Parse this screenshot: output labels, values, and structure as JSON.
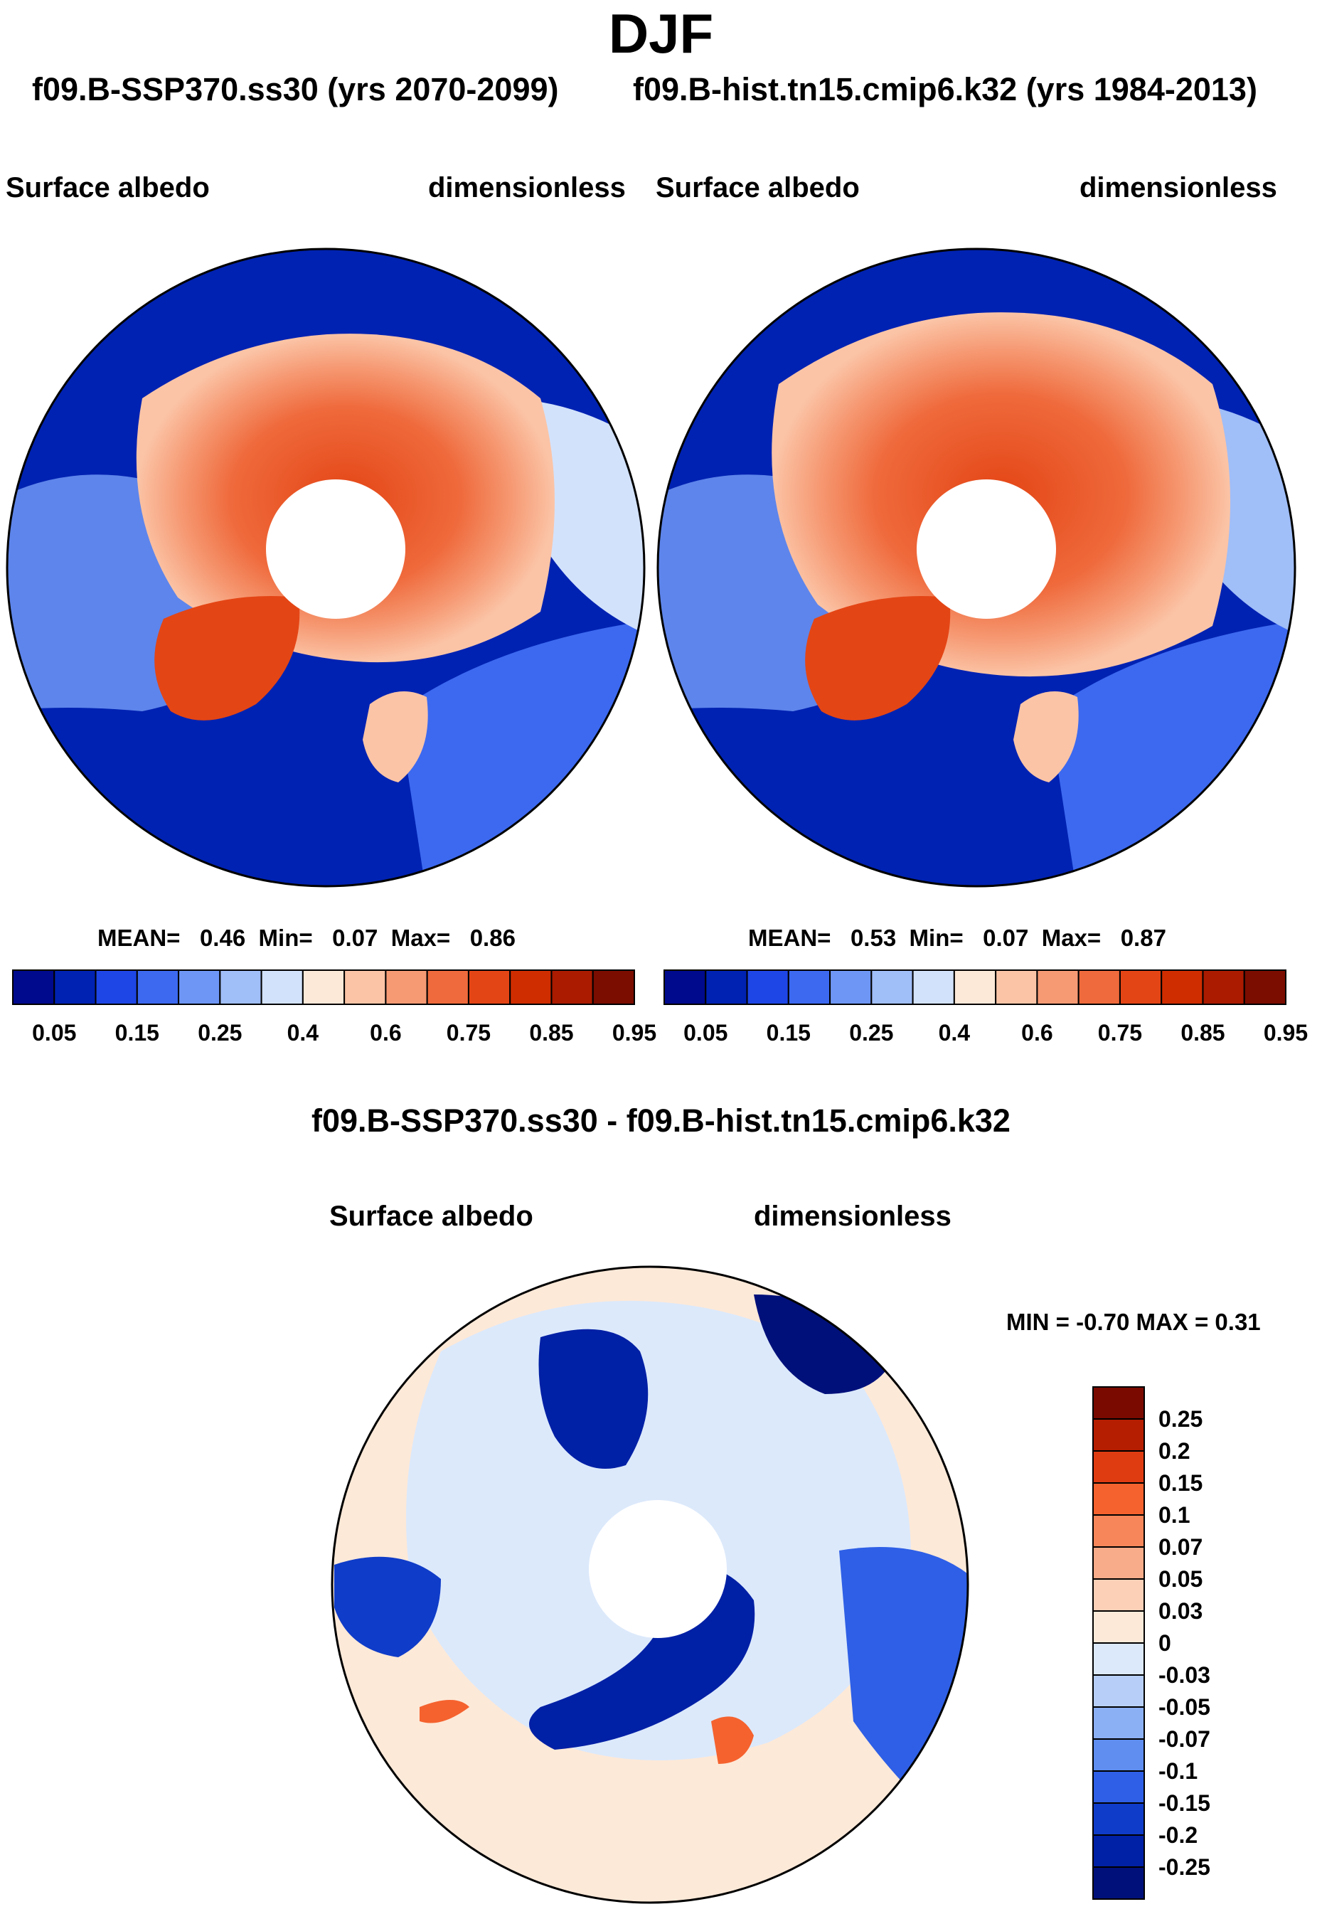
{
  "title": "DJF",
  "panels": [
    {
      "subtitle": "f09.B-SSP370.ss30 (yrs 2070-2099)",
      "variable": "Surface albedo",
      "units": "dimensionless",
      "stats": {
        "mean_label": "MEAN=",
        "mean": "0.46",
        "min_label": "Min=",
        "min": "0.07",
        "max_label": "Max=",
        "max": "0.86"
      }
    },
    {
      "subtitle": "f09.B-hist.tn15.cmip6.k32 (yrs 1984-2013)",
      "variable": "Surface albedo",
      "units": "dimensionless",
      "stats": {
        "mean_label": "MEAN=",
        "mean": "0.53",
        "min_label": "Min=",
        "min": "0.07",
        "max_label": "Max=",
        "max": "0.87"
      }
    }
  ],
  "colorbar": {
    "labels": [
      "0.05",
      "0.15",
      "0.25",
      "0.4",
      "0.6",
      "0.75",
      "0.85",
      "0.95"
    ],
    "colors": [
      "#000a8c",
      "#0022b2",
      "#1e46e6",
      "#3c69f0",
      "#6e96f5",
      "#a0bef8",
      "#d2e2fb",
      "#fde9d8",
      "#fbc4a6",
      "#f69a74",
      "#ef6a3c",
      "#e44515",
      "#cf2d00",
      "#aa1b00",
      "#7a0d00"
    ]
  },
  "difference": {
    "title": "f09.B-SSP370.ss30 - f09.B-hist.tn15.cmip6.k32",
    "variable": "Surface albedo",
    "units": "dimensionless",
    "minmax": "MIN =  -0.70 MAX =   0.31",
    "colorbar_labels": [
      "0.25",
      "0.2",
      "0.15",
      "0.1",
      "0.07",
      "0.05",
      "0.03",
      "0",
      "-0.03",
      "-0.05",
      "-0.07",
      "-0.1",
      "-0.15",
      "-0.2",
      "-0.25"
    ],
    "colorbar_colors": [
      "#7a0a00",
      "#b51e00",
      "#e03c12",
      "#f5622e",
      "#f7875a",
      "#f9ac89",
      "#fbd0b7",
      "#fde9d8",
      "#dce9fb",
      "#b7cff8",
      "#8cb0f4",
      "#5f8ef0",
      "#2e5fe6",
      "#0f3cc8",
      "#0020a5",
      "#00107a"
    ]
  }
}
